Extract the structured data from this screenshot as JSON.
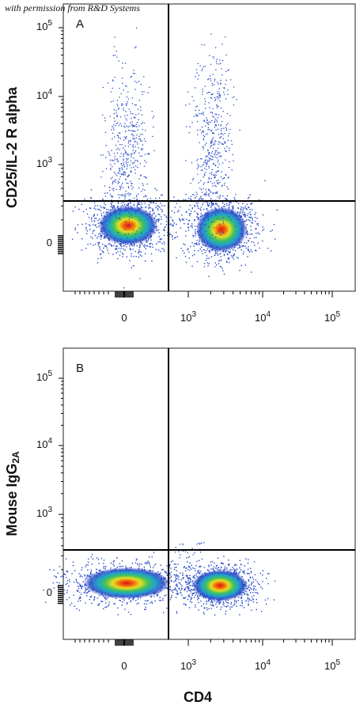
{
  "watermark": "with permission from R&D Systems",
  "x_axis_label": "CD4",
  "panels": [
    {
      "label": "A",
      "y_axis_label": {
        "text": "CD25/IL-2 R alpha"
      },
      "y_ticks": [
        {
          "base": "10",
          "exp": "5"
        },
        {
          "base": "10",
          "exp": "4"
        },
        {
          "base": "10",
          "exp": "3"
        },
        {
          "base": "0"
        }
      ],
      "x_ticks": [
        {
          "base": "0"
        },
        {
          "base": "10",
          "exp": "3"
        },
        {
          "base": "10",
          "exp": "4"
        },
        {
          "base": "10",
          "exp": "5"
        }
      ]
    },
    {
      "label": "B",
      "y_axis_label": {
        "text": "Mouse IgG",
        "subscript": "2A"
      },
      "y_ticks": [
        {
          "base": "10",
          "exp": "5"
        },
        {
          "base": "10",
          "exp": "4"
        },
        {
          "base": "10",
          "exp": "3"
        },
        {
          "base": "0"
        }
      ],
      "x_ticks": [
        {
          "base": "0"
        },
        {
          "base": "10",
          "exp": "3"
        },
        {
          "base": "10",
          "exp": "4"
        },
        {
          "base": "10",
          "exp": "5"
        }
      ]
    }
  ]
}
